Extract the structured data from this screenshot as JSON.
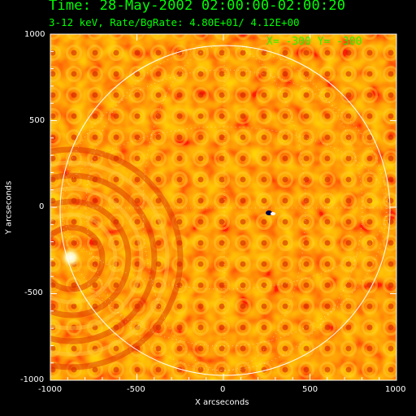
{
  "header": {
    "title": "Time: 28-May-2002 02:00:00-02:00:20",
    "subtitle": "3-12 keV, Rate/BgRate:  4.80E+01/  4.12E+00",
    "coord_readout": "X= -300 Y= -300"
  },
  "axes": {
    "x_label": "X arcseconds",
    "y_label": "Y arcseconds",
    "x_ticks": [
      "-1000",
      "-500",
      "0",
      "500",
      "1000"
    ],
    "y_ticks": [
      "1000",
      "500",
      "0",
      "-500",
      "-1000"
    ],
    "x_range": [
      -1000,
      1000
    ],
    "y_range": [
      -1000,
      1000
    ]
  },
  "image": {
    "colormap": "red-yellow (RHESSI back-projection)",
    "frame_color": "#ffffff",
    "limb_color": "#ffffff",
    "text_color": "#00ff00",
    "solar_disk_radius_arcsec": 950
  }
}
